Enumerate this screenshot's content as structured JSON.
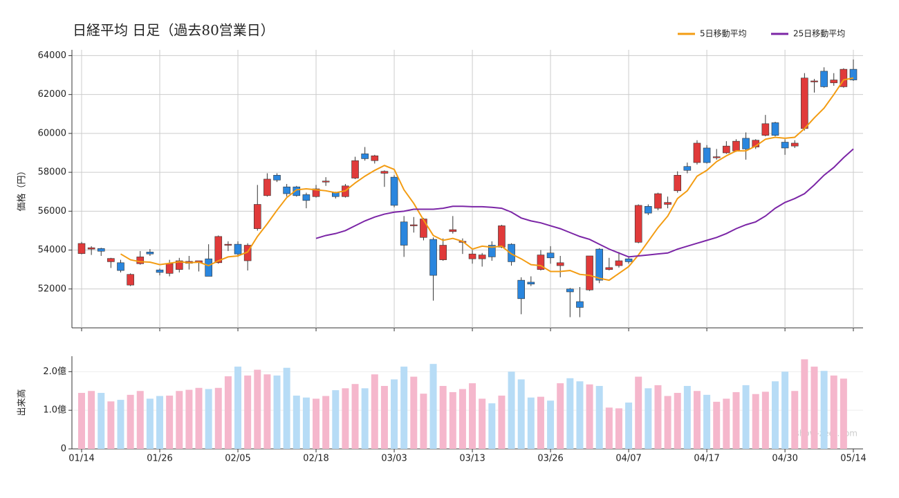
{
  "chart_data": [
    {
      "type": "candlestick",
      "title": "日経平均 日足（過去80営業日）",
      "ylabel": "価格（円）",
      "up_color": "#e03a3a",
      "down_color": "#2a86de",
      "open": [
        53820,
        54050,
        54080,
        53400,
        53350,
        52200,
        53300,
        53900,
        52980,
        52800,
        53000,
        53320,
        53350,
        53550,
        53350,
        54250,
        54300,
        53450,
        55100,
        56800,
        57850,
        57250,
        57250,
        56850,
        56750,
        57500,
        56950,
        56750,
        57700,
        58950,
        58600,
        57950,
        57750,
        55450,
        55250,
        54650,
        54550,
        53500,
        54950,
        54400,
        53550,
        53550,
        54250,
        54150,
        54300,
        52450,
        52350,
        53000,
        53850,
        53200,
        52000,
        51350,
        51950,
        54050,
        53000,
        53200,
        53550,
        54400,
        56250,
        56150,
        56350,
        57050,
        58300,
        58500,
        59250,
        58750,
        59000,
        59100,
        59750,
        59300,
        59900,
        60550,
        59550,
        59350,
        60250,
        62650,
        63200,
        62600,
        62400,
        63300
      ],
      "high": [
        54420,
        54200,
        54120,
        53600,
        53500,
        52800,
        53950,
        54050,
        53050,
        53500,
        53600,
        53700,
        53450,
        54300,
        54750,
        54450,
        54450,
        54350,
        57350,
        57950,
        57950,
        57400,
        57300,
        56950,
        57350,
        57750,
        57000,
        57400,
        58800,
        59300,
        58900,
        58100,
        57850,
        55750,
        55700,
        55650,
        54650,
        54600,
        55750,
        54600,
        54000,
        53850,
        54450,
        55300,
        54350,
        52600,
        52650,
        54000,
        54200,
        53700,
        52050,
        52100,
        53700,
        54100,
        53600,
        53900,
        53650,
        56350,
        56350,
        56950,
        56750,
        58050,
        58500,
        59650,
        59400,
        59200,
        59600,
        59700,
        60050,
        59700,
        60950,
        60600,
        59700,
        59650,
        63100,
        62800,
        63400,
        63100,
        63350,
        63800
      ],
      "low": [
        53780,
        53750,
        53700,
        53080,
        52850,
        52150,
        53250,
        53700,
        52700,
        52650,
        52850,
        53000,
        52900,
        52650,
        53300,
        53950,
        53650,
        52950,
        55000,
        56750,
        57500,
        56750,
        56750,
        56150,
        56700,
        57300,
        56650,
        56700,
        57650,
        58600,
        58450,
        57250,
        56200,
        53650,
        54900,
        54500,
        51400,
        53450,
        54850,
        53800,
        53300,
        53150,
        53450,
        54100,
        53200,
        50700,
        52150,
        52950,
        53300,
        52600,
        50550,
        50550,
        51900,
        52300,
        52950,
        53100,
        53300,
        54350,
        55800,
        56050,
        56150,
        56950,
        57950,
        58400,
        58450,
        58650,
        58950,
        59050,
        58650,
        59200,
        59850,
        59850,
        58900,
        59250,
        60150,
        62100,
        62350,
        62450,
        62350,
        62700
      ],
      "close": [
        54340,
        54120,
        53940,
        53570,
        52950,
        52750,
        53650,
        53800,
        52850,
        53300,
        53450,
        53420,
        53450,
        52650,
        54700,
        54300,
        53800,
        54250,
        56350,
        57650,
        57600,
        56900,
        56800,
        56550,
        57150,
        57550,
        56750,
        57300,
        58600,
        58700,
        58850,
        58050,
        56300,
        54250,
        55300,
        55600,
        52700,
        54250,
        55050,
        54450,
        53800,
        53750,
        53650,
        55250,
        53400,
        51500,
        52250,
        53750,
        53600,
        53350,
        51850,
        51050,
        53700,
        52450,
        53100,
        53450,
        53400,
        56300,
        55900,
        56900,
        56450,
        57850,
        58100,
        59500,
        58500,
        58800,
        59350,
        59600,
        59200,
        59650,
        60500,
        59900,
        59250,
        59500,
        62850,
        62700,
        62400,
        62750,
        63300,
        62750
      ],
      "series": [
        {
          "name": "5日移動平均",
          "color": "#f39c12",
          "values": [
            null,
            null,
            null,
            null,
            53800,
            53500,
            53400,
            53380,
            53250,
            53320,
            53400,
            53350,
            53380,
            53200,
            53450,
            53650,
            53700,
            53900,
            54700,
            55350,
            56050,
            56700,
            57100,
            57150,
            57100,
            57050,
            56950,
            57050,
            57450,
            57800,
            58100,
            58350,
            58150,
            57100,
            56400,
            55550,
            54750,
            54500,
            54600,
            54450,
            54050,
            54200,
            54150,
            54200,
            53800,
            53550,
            53250,
            53200,
            52900,
            52900,
            52950,
            52750,
            52700,
            52550,
            52450,
            52800,
            53150,
            53750,
            54450,
            55150,
            55750,
            56650,
            57050,
            57800,
            58100,
            58550,
            58850,
            59100,
            59100,
            59350,
            59700,
            59800,
            59750,
            59800,
            60250,
            60800,
            61300,
            62000,
            62750,
            62850
          ]
        },
        {
          "name": "25日移動平均",
          "color": "#7b25a6",
          "values": [
            null,
            null,
            null,
            null,
            null,
            null,
            null,
            null,
            null,
            null,
            null,
            null,
            null,
            null,
            null,
            null,
            null,
            null,
            null,
            null,
            null,
            null,
            null,
            null,
            54600,
            54750,
            54850,
            55000,
            55250,
            55500,
            55700,
            55850,
            55950,
            56000,
            56100,
            56100,
            56100,
            56150,
            56250,
            56250,
            56230,
            56230,
            56200,
            56150,
            55950,
            55650,
            55500,
            55400,
            55250,
            55100,
            54900,
            54700,
            54550,
            54300,
            54050,
            53850,
            53650,
            53700,
            53750,
            53800,
            53850,
            54050,
            54200,
            54350,
            54500,
            54650,
            54850,
            55100,
            55300,
            55450,
            55750,
            56150,
            56450,
            56650,
            56900,
            57350,
            57850,
            58250,
            58750,
            59200
          ]
        }
      ],
      "ylim": [
        50000,
        64300
      ],
      "yticks": [
        52000,
        54000,
        56000,
        58000,
        60000,
        62000,
        64000
      ],
      "grid": true,
      "legend": "top-right"
    },
    {
      "type": "bar",
      "ylabel": "出来高",
      "watermark": "show-zeet.com",
      "up_color": "#f5b7cc",
      "down_color": "#b7dcf6",
      "categories": [
        "01/14",
        null,
        null,
        null,
        null,
        null,
        null,
        null,
        "01/26",
        null,
        null,
        null,
        null,
        null,
        null,
        null,
        "02/05",
        null,
        null,
        null,
        null,
        null,
        null,
        null,
        "02/18",
        null,
        null,
        null,
        null,
        null,
        null,
        null,
        "03/03",
        null,
        null,
        null,
        null,
        null,
        null,
        null,
        "03/13",
        null,
        null,
        null,
        null,
        null,
        null,
        null,
        "03/26",
        null,
        null,
        null,
        null,
        null,
        null,
        null,
        "04/07",
        null,
        null,
        null,
        null,
        null,
        null,
        null,
        "04/17",
        null,
        null,
        null,
        null,
        null,
        null,
        null,
        "04/30",
        null,
        null,
        null,
        null,
        null,
        null,
        "05/14"
      ],
      "values": [
        1.45,
        1.5,
        1.45,
        1.23,
        1.27,
        1.4,
        1.5,
        1.3,
        1.37,
        1.38,
        1.5,
        1.53,
        1.58,
        1.55,
        1.58,
        1.88,
        2.13,
        1.9,
        2.05,
        1.93,
        1.9,
        2.1,
        1.38,
        1.33,
        1.3,
        1.37,
        1.52,
        1.57,
        1.68,
        1.57,
        1.93,
        1.63,
        1.8,
        2.13,
        1.87,
        1.43,
        2.2,
        1.63,
        1.47,
        1.55,
        1.7,
        1.3,
        1.18,
        1.38,
        2.0,
        1.8,
        1.33,
        1.35,
        1.25,
        1.7,
        1.83,
        1.75,
        1.67,
        1.63,
        1.07,
        1.05,
        1.2,
        1.87,
        1.57,
        1.65,
        1.37,
        1.45,
        1.63,
        1.5,
        1.4,
        1.22,
        1.3,
        1.47,
        1.65,
        1.42,
        1.48,
        1.75,
        2.0,
        1.5,
        2.32,
        2.13,
        2.02,
        1.9,
        1.82,
        null
      ],
      "ylim": [
        0,
        2.4
      ],
      "yticks": [
        0,
        {
          "value": 1,
          "label": "1.0億"
        },
        {
          "value": 2,
          "label": "2.0億"
        }
      ],
      "grid": true
    }
  ]
}
